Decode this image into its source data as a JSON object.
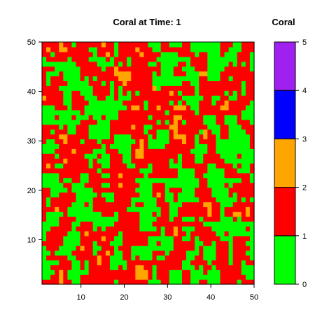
{
  "chart_data": {
    "type": "heatmap",
    "title": "Coral at Time: 1",
    "xlabel": "",
    "ylabel": "",
    "xlim": [
      1,
      50
    ],
    "ylim": [
      1,
      50
    ],
    "x_ticks": [
      10,
      20,
      30,
      40,
      50
    ],
    "y_ticks": [
      10,
      20,
      30,
      40,
      50
    ],
    "legend": {
      "title": "Coral",
      "position": "right",
      "breaks": [
        0,
        1,
        2,
        3,
        4,
        5
      ],
      "colors": [
        "#00ff00",
        "#ff0000",
        "#ffa500",
        "#0000ff",
        "#a020f0"
      ]
    },
    "grid_size": [
      50,
      50
    ],
    "values_present": [
      0,
      1,
      2
    ],
    "category_colors": {
      "0-1": "#00ff00",
      "1-2": "#ff0000",
      "2-3": "#ffa500",
      "3-4": "#0000ff",
      "4-5": "#a020f0"
    }
  }
}
